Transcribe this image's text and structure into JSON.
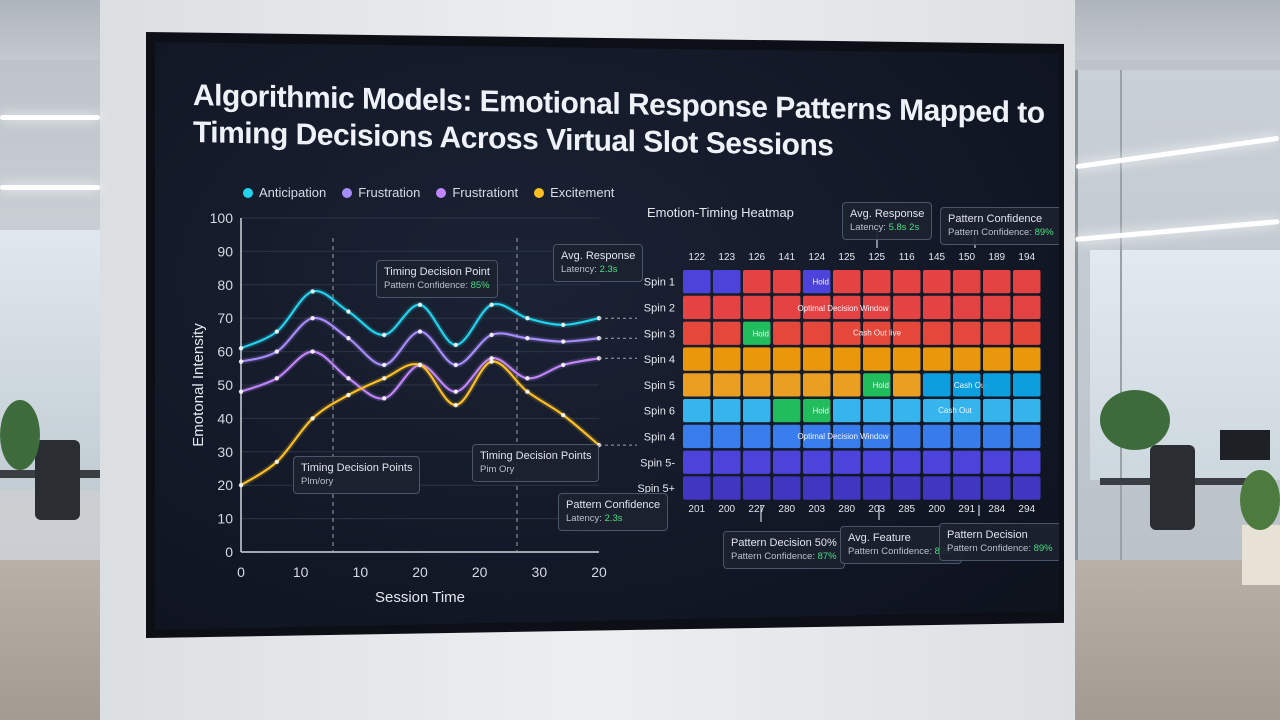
{
  "title_lines": [
    "Algorithmic Models: Emotional Response Patterns Mapped to",
    "Timing  Decisions  Across Virtual Slot Sessions"
  ],
  "legend": [
    {
      "label": "Anticipation",
      "color": "#22d3ee"
    },
    {
      "label": "Frustration",
      "color": "#a78bfa"
    },
    {
      "label": "Frustrationt",
      "color": "#c084fc"
    },
    {
      "label": "Excitement",
      "color": "#fbbf24"
    }
  ],
  "chart_data": [
    {
      "type": "line",
      "title": "",
      "xlabel": "Session Time",
      "ylabel": "Emotonal Intensity",
      "x_tick_labels": [
        "0",
        "10",
        "10",
        "20",
        "20",
        "30",
        "20"
      ],
      "y_ticks": [
        0,
        10,
        20,
        30,
        40,
        50,
        60,
        70,
        80,
        90,
        100
      ],
      "ylim": [
        0,
        100
      ],
      "grid": true,
      "series": [
        {
          "name": "Anticipation",
          "color": "#22d3ee",
          "values": [
            61,
            66,
            78,
            72,
            65,
            74,
            62,
            74,
            70,
            68,
            70
          ]
        },
        {
          "name": "Frustration",
          "color": "#a78bfa",
          "values": [
            57,
            60,
            70,
            64,
            56,
            66,
            56,
            65,
            64,
            63,
            64
          ]
        },
        {
          "name": "Frustrationt",
          "color": "#c084fc",
          "values": [
            48,
            52,
            60,
            52,
            46,
            56,
            48,
            58,
            52,
            56,
            58
          ]
        },
        {
          "name": "Excitement",
          "color": "#fbbf24",
          "values": [
            20,
            27,
            40,
            47,
            52,
            56,
            44,
            57,
            48,
            41,
            32
          ]
        }
      ]
    },
    {
      "type": "heatmap",
      "title": "Emotion-Timing Heatmap",
      "column_labels_top": [
        "122",
        "123",
        "126",
        "141",
        "124",
        "125",
        "125",
        "116",
        "145",
        "150",
        "189",
        "194"
      ],
      "column_labels_bottom": [
        "201",
        "200",
        "227",
        "280",
        "203",
        "280",
        "203",
        "285",
        "200",
        "291",
        "284",
        "294"
      ],
      "row_labels": [
        "Spin 1",
        "Spin 2",
        "Spin 3",
        "Spin 4",
        "Spin 5",
        "Spin 6",
        "Spin 4",
        "Spin 5-",
        "Spin 5+"
      ],
      "row_colors": [
        "#ef4444",
        "#ef4444",
        "#f04a3c",
        "#f59e0b",
        "#f6a623",
        "#38bdf8",
        "#3b82f6",
        "#4f46e5",
        "#4338ca"
      ],
      "cell_overrides": [
        {
          "row": 0,
          "col": 0,
          "color": "#4f46e5"
        },
        {
          "row": 0,
          "col": 1,
          "color": "#4f46e5"
        },
        {
          "row": 0,
          "col": 4,
          "color": "#4f46e5",
          "text": "Hold"
        },
        {
          "row": 2,
          "col": 2,
          "color": "#22c55e",
          "text": "Hold"
        },
        {
          "row": 4,
          "col": 6,
          "color": "#22c55e",
          "text": "Hold"
        },
        {
          "row": 4,
          "col": 8,
          "color": "#0ea5e9"
        },
        {
          "row": 4,
          "col": 9,
          "color": "#0ea5e9",
          "text": "Cash Out"
        },
        {
          "row": 4,
          "col": 10,
          "color": "#0ea5e9"
        },
        {
          "row": 4,
          "col": 11,
          "color": "#0ea5e9"
        },
        {
          "row": 5,
          "col": 3,
          "color": "#22c55e"
        },
        {
          "row": 5,
          "col": 4,
          "color": "#22c55e",
          "text": "Hold"
        }
      ],
      "annotations": [
        "Optimal Decision Window",
        "Cash Out live",
        "Cash Out",
        "Optimal Decision Window"
      ]
    }
  ],
  "callouts": {
    "timing_decision_point": {
      "title": "Timing Decision Point",
      "sub": "Pattern Confidence: ",
      "value": "85%"
    },
    "avg_response_line": {
      "title": "Avg. Response",
      "sub": "Latency: ",
      "value": "2.3s"
    },
    "timing_decision_points_1": {
      "title": "Timing Decision Points",
      "sub": "Plm/ory"
    },
    "timing_decision_points_2": {
      "title": "Timing Decision Points",
      "sub": "Pim Ory"
    },
    "pattern_confidence_line": {
      "title": "Pattern Confidence",
      "sub": "Latency: ",
      "value": "2.3s"
    },
    "avg_response_hm": {
      "title": "Avg. Response",
      "sub": "Latency: ",
      "value": "5.8s 2s"
    },
    "pattern_confidence_hm": {
      "title": "Pattern Confidence",
      "sub": "Pattern Confidence: ",
      "value": "89%"
    },
    "pattern_decision_bl": {
      "title": "Pattern Decision 50%",
      "sub": "Pattern Confidence: ",
      "value": "87%"
    },
    "avg_feature_bm": {
      "title": "Avg. Feature",
      "sub": "Pattern Confidence: ",
      "value": "89%"
    },
    "pattern_decision_br": {
      "title": "Pattern Decision",
      "sub": "Pattern Confidence: ",
      "value": "89%"
    }
  }
}
